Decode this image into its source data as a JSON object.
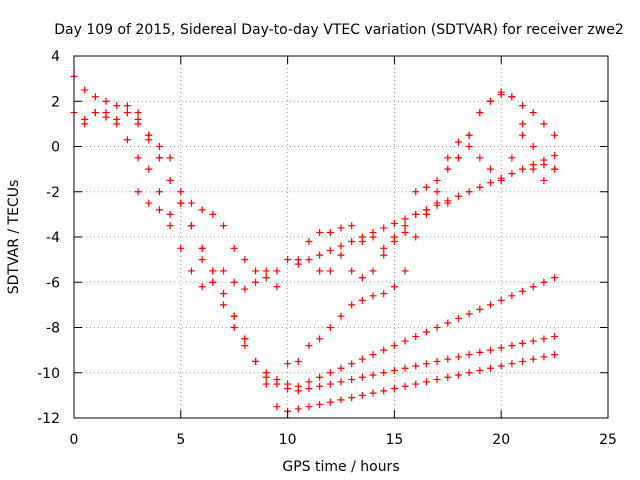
{
  "chart_data": {
    "type": "scatter",
    "title": "Day 109 of 2015, Sidereal Day-to-day VTEC variation (SDTVAR) for receiver zwe2",
    "xlabel": "GPS time / hours",
    "ylabel": "SDTVAR / TECUs",
    "xlim": [
      0,
      25
    ],
    "ylim": [
      -12,
      4
    ],
    "xticks": [
      0,
      5,
      10,
      15,
      20,
      25
    ],
    "yticks": [
      -12,
      -10,
      -8,
      -6,
      -4,
      -2,
      0,
      2,
      4
    ],
    "xtick_labels": [
      "0",
      "5",
      "10",
      "15",
      "20",
      "25"
    ],
    "ytick_labels": [
      "-12",
      "-10",
      "-8",
      "-6",
      "-4",
      "-2",
      "0",
      "2",
      "4"
    ],
    "grid": true,
    "marker": "+",
    "color": "#ff0000",
    "series": [
      {
        "x": [
          0.0,
          0.5,
          1.0,
          1.5,
          2.0,
          2.5,
          3.0,
          3.5,
          4.0,
          4.5,
          5.0,
          5.5,
          6.0,
          6.5,
          7.0,
          7.5,
          8.0,
          8.5,
          9.0,
          9.5,
          10.0,
          10.5,
          11.0,
          11.5,
          12.0,
          12.5,
          13.0,
          13.5,
          14.0,
          14.5,
          15.0,
          15.5,
          16.0,
          16.5,
          17.0,
          17.5,
          18.0,
          18.5,
          19.0,
          19.5,
          20.0,
          20.5,
          21.0,
          21.5,
          22.0,
          22.5
        ],
        "y": [
          1.5,
          1.2,
          1.5,
          1.5,
          1.0,
          0.3,
          -0.5,
          -1.0,
          -2.0,
          -3.5,
          -4.5,
          -5.5,
          -6.2,
          -6.0,
          -5.5,
          -6.0,
          -6.3,
          -6.0,
          -5.5,
          -6.2,
          -9.6,
          -9.5,
          -8.8,
          -8.5,
          -8.0,
          -7.5,
          -7.0,
          -6.8,
          -6.6,
          -6.5,
          -6.2,
          -5.5,
          -4.0,
          -3.0,
          -2.0,
          -1.0,
          -0.5,
          0.5,
          1.5,
          2.0,
          2.4,
          2.2,
          1.0,
          0.0,
          -0.8,
          -1.0
        ]
      },
      {
        "x": [
          0.0,
          0.5,
          1.0,
          1.5,
          2.0,
          2.5,
          3.0,
          3.5,
          4.0,
          4.5,
          5.0,
          5.5,
          6.0,
          6.5,
          7.0,
          7.5,
          8.0,
          8.5,
          9.0,
          9.5,
          10.0,
          10.5,
          11.0,
          11.5,
          12.0,
          12.5,
          13.0,
          13.5,
          14.0,
          14.5,
          15.0,
          15.5,
          16.0,
          16.5,
          17.0,
          17.5,
          18.0,
          18.5,
          19.0,
          19.5,
          20.0,
          20.5,
          21.0,
          21.5,
          22.0,
          22.5
        ],
        "y": [
          3.1,
          2.5,
          2.2,
          2.0,
          1.8,
          1.5,
          1.0,
          0.3,
          -0.5,
          -1.5,
          -2.5,
          -3.5,
          -5.0,
          -6.0,
          -7.0,
          -8.0,
          -8.8,
          -9.5,
          -10.5,
          -11.5,
          -11.7,
          -11.6,
          -11.5,
          -11.4,
          -11.3,
          -11.2,
          -11.1,
          -11.0,
          -10.9,
          -10.8,
          -10.7,
          -10.6,
          -10.5,
          -10.4,
          -10.3,
          -10.2,
          -10.1,
          -10.0,
          -9.9,
          -9.8,
          -9.7,
          -9.6,
          -9.5,
          -9.4,
          -9.3,
          -9.2
        ]
      },
      {
        "x": [
          0.5,
          1.0,
          1.5,
          2.0,
          2.5,
          3.0,
          3.5,
          4.0,
          4.5,
          5.0,
          5.5,
          6.0,
          6.5,
          7.0,
          7.5,
          8.0,
          8.5,
          9.0,
          9.5,
          10.0,
          10.5,
          11.0,
          11.5,
          12.0,
          12.5,
          13.0,
          13.5,
          14.0,
          14.5,
          15.0,
          15.5,
          16.0,
          16.5,
          17.0,
          17.5,
          18.0,
          18.5,
          19.0,
          19.5,
          20.0,
          20.5,
          21.0,
          21.5,
          22.0,
          22.5
        ],
        "y": [
          1.0,
          1.5,
          1.3,
          1.2,
          1.5,
          1.2,
          0.5,
          0.0,
          -0.5,
          -2.0,
          -3.5,
          -4.5,
          -5.5,
          -6.5,
          -7.5,
          -8.5,
          -9.5,
          -10.0,
          -10.3,
          -10.5,
          -10.8,
          -10.7,
          -10.6,
          -10.5,
          -10.4,
          -10.3,
          -10.2,
          -10.1,
          -10.0,
          -9.9,
          -9.8,
          -9.7,
          -9.6,
          -9.5,
          -9.4,
          -9.3,
          -9.2,
          -9.1,
          -9.0,
          -8.9,
          -8.8,
          -8.7,
          -8.6,
          -8.5,
          -8.4
        ]
      },
      {
        "x": [
          2.5,
          3.0,
          3.5,
          4.0,
          4.5,
          5.0,
          5.5,
          6.0,
          6.5,
          7.0,
          7.5,
          8.0,
          8.5,
          9.0,
          9.5,
          10.0,
          10.5,
          11.0,
          11.5,
          12.0,
          12.5,
          13.0,
          13.5,
          14.0,
          14.5,
          15.0,
          15.5,
          16.0,
          16.5,
          17.0,
          17.5,
          18.0,
          18.5,
          19.0,
          19.5,
          20.0,
          20.5,
          21.0,
          21.5,
          22.0,
          22.5
        ],
        "y": [
          1.8,
          1.5,
          0.5,
          -0.5,
          -1.5,
          -2.5,
          -3.5,
          -4.5,
          -5.5,
          -6.5,
          -7.5,
          -8.5,
          -9.5,
          -10.2,
          -10.5,
          -10.7,
          -10.6,
          -10.4,
          -10.2,
          -10.0,
          -9.8,
          -9.6,
          -9.4,
          -9.2,
          -9.0,
          -8.8,
          -8.6,
          -8.4,
          -8.2,
          -8.0,
          -7.8,
          -7.6,
          -7.4,
          -7.2,
          -7.0,
          -6.8,
          -6.6,
          -6.4,
          -6.2,
          -6.0,
          -5.8
        ]
      },
      {
        "x": [
          3.0,
          3.5,
          4.0,
          4.5,
          5.0,
          5.5,
          6.0,
          6.5,
          7.0,
          7.5,
          8.0,
          8.5,
          9.0,
          9.5,
          10.0,
          10.5,
          11.0,
          11.5,
          12.0,
          12.5,
          13.0,
          13.5,
          14.0,
          14.5,
          15.0,
          15.5,
          16.0,
          16.5,
          17.0,
          17.5,
          18.0,
          18.5,
          19.0,
          19.5,
          20.0,
          20.5,
          21.0,
          21.5,
          22.0,
          22.5
        ],
        "y": [
          -2.0,
          -2.5,
          -2.8,
          -3.0,
          -2.5,
          -2.5,
          -2.8,
          -3.0,
          -3.5,
          -4.5,
          -5.0,
          -5.5,
          -5.8,
          -5.5,
          -5.0,
          -5.2,
          -5.0,
          -4.8,
          -4.6,
          -4.4,
          -4.2,
          -4.0,
          -3.8,
          -3.6,
          -3.4,
          -3.2,
          -3.0,
          -2.8,
          -2.6,
          -2.4,
          -2.2,
          -2.0,
          -1.8,
          -1.6,
          -1.4,
          -1.2,
          -1.0,
          -0.8,
          -0.6,
          -0.4
        ]
      },
      {
        "x": [
          10.5,
          11.0,
          11.5,
          12.0,
          12.5,
          13.0,
          13.5,
          14.0,
          14.5,
          15.0,
          15.5,
          16.0,
          16.5,
          17.0,
          17.5,
          18.0,
          18.5,
          19.0,
          19.5,
          20.0,
          20.5,
          21.0,
          21.5,
          22.0,
          22.5
        ],
        "y": [
          -5.0,
          -4.2,
          -3.8,
          -3.8,
          -3.6,
          -3.5,
          -4.2,
          -4.0,
          -4.5,
          -4.0,
          -3.8,
          -2.0,
          -1.8,
          -1.5,
          -0.5,
          0.2,
          0.5,
          1.5,
          2.0,
          2.3,
          2.2,
          1.8,
          1.5,
          1.0,
          0.5
        ]
      },
      {
        "x": [
          11.5,
          12.0,
          12.5,
          13.0,
          13.5,
          14.0,
          14.5,
          15.0,
          15.5,
          16.0,
          16.5,
          17.0,
          17.5,
          18.0,
          18.5,
          19.0,
          19.5,
          20.0,
          20.5,
          21.0,
          21.5,
          22.0,
          22.5
        ],
        "y": [
          -5.5,
          -5.5,
          -4.8,
          -5.5,
          -5.8,
          -5.5,
          -4.8,
          -4.2,
          -3.5,
          -3.0,
          -2.8,
          -2.5,
          -2.5,
          -0.5,
          0.0,
          -0.5,
          -1.0,
          -1.5,
          -0.5,
          0.5,
          -1.0,
          -1.5,
          -1.0
        ]
      }
    ]
  }
}
